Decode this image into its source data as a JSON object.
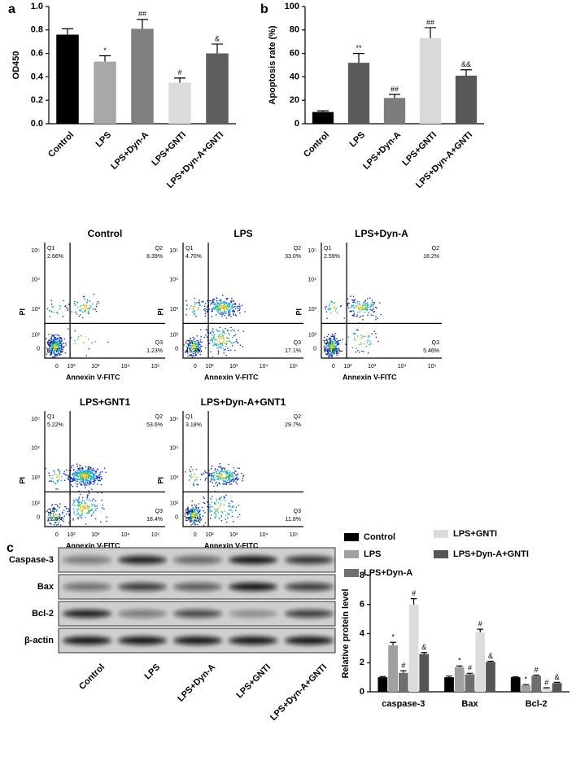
{
  "chart_data": [
    {
      "type": "bar",
      "panel_label": "a",
      "ylabel": "OD450",
      "categories": [
        "Control",
        "LPS",
        "LPS+Dyn-A",
        "LPS+GNTI",
        "LPS+Dyn-A+GNTI"
      ],
      "values": [
        0.76,
        0.53,
        0.81,
        0.35,
        0.6
      ],
      "errors": [
        0.05,
        0.05,
        0.08,
        0.04,
        0.08
      ],
      "annotations": [
        null,
        "*",
        "##",
        "#",
        "&"
      ],
      "colors": [
        "#000000",
        "#a8a8ab",
        "#808083",
        "#dcdcde",
        "#5e5e60"
      ],
      "ylim": [
        0,
        1
      ],
      "yticks": [
        {
          "value": 0,
          "label": "0.0"
        },
        0.2,
        0.4,
        0.6,
        0.8,
        {
          "value": 1,
          "label": "1.0"
        }
      ]
    },
    {
      "type": "bar",
      "panel_label": "b",
      "ylabel": "Apoptosis rate (%)",
      "categories": [
        "Control",
        "LPS",
        "LPS+Dyn-A",
        "LPS+GNTI",
        "LPS+Dyn-A+GNTI"
      ],
      "values": [
        10,
        52,
        22,
        73,
        41
      ],
      "errors": [
        1,
        8,
        3,
        9,
        5
      ],
      "annotations": [
        null,
        "**",
        "##",
        "##",
        "&&"
      ],
      "colors": [
        "#000000",
        "#5a5a5c",
        "#7c7c7e",
        "#d9d9db",
        "#58585a"
      ],
      "ylim": [
        0,
        100
      ],
      "yticks": [
        0,
        20,
        40,
        60,
        80,
        100
      ]
    },
    {
      "type": "bar",
      "ylabel": "Relative protein level",
      "categories": [
        "caspase-3",
        "Bax",
        "Bcl-2"
      ],
      "series": [
        {
          "name": "Control",
          "color": "#000000",
          "values": [
            1,
            1,
            1
          ],
          "errors": [
            0.05,
            0.08,
            0.03
          ],
          "annotations": [
            null,
            null,
            null
          ]
        },
        {
          "name": "LPS",
          "color": "#a0a0a3",
          "values": [
            3.2,
            1.7,
            0.45
          ],
          "errors": [
            0.2,
            0.08,
            0.05
          ],
          "annotations": [
            "*",
            "*",
            "*"
          ]
        },
        {
          "name": "LPS+Dyn-A",
          "color": "#6e6e70",
          "values": [
            1.3,
            1.2,
            1.1
          ],
          "errors": [
            0.15,
            0.07,
            0.05
          ],
          "annotations": [
            "#",
            "#",
            "#"
          ]
        },
        {
          "name": "LPS+GNTI",
          "color": "#dcdcde",
          "values": [
            6.0,
            4.1,
            0.25
          ],
          "errors": [
            0.4,
            0.2,
            0.03
          ],
          "annotations": [
            "#",
            "#",
            "#"
          ]
        },
        {
          "name": "LPS+Dyn-A+GNTI",
          "color": "#555557",
          "values": [
            2.6,
            2.05,
            0.6
          ],
          "errors": [
            0.1,
            0.05,
            0.05
          ],
          "annotations": [
            "&",
            "&",
            "&"
          ]
        }
      ],
      "ylim": [
        0,
        8
      ],
      "yticks": [
        0,
        2,
        4,
        6,
        8
      ]
    }
  ],
  "flow_cytometry": {
    "xlabel": "Annexin V-FITC",
    "ylabel": "PI",
    "xtick_labels": [
      "0",
      "10²",
      "10³",
      "10⁴",
      "10⁵"
    ],
    "ytick_labels": [
      "0",
      "10²",
      "10³",
      "10⁴",
      "10⁵"
    ],
    "plots": [
      {
        "title": "Control",
        "quadrants": [
          {
            "name": "Q1",
            "percent": "2.66%"
          },
          {
            "name": "Q2",
            "percent": "8.39%"
          },
          {
            "name": "Q3",
            "percent": "1.23%"
          },
          {
            "name": "Q4",
            "percent": "87.7%"
          }
        ]
      },
      {
        "title": "LPS",
        "quadrants": [
          {
            "name": "Q1",
            "percent": "4.70%"
          },
          {
            "name": "Q2",
            "percent": "33.0%"
          },
          {
            "name": "Q3",
            "percent": "17.1%"
          },
          {
            "name": "Q4",
            "percent": "45.3%"
          }
        ]
      },
      {
        "title": "LPS+Dyn-A",
        "quadrants": [
          {
            "name": "Q1",
            "percent": "2.59%"
          },
          {
            "name": "Q2",
            "percent": "18.2%"
          },
          {
            "name": "Q3",
            "percent": "5.46%"
          },
          {
            "name": "Q4",
            "percent": "73.8%"
          }
        ]
      },
      {
        "title": "LPS+GNT1",
        "quadrants": [
          {
            "name": "Q1",
            "percent": "5.22%"
          },
          {
            "name": "Q2",
            "percent": "53.6%"
          },
          {
            "name": "Q3",
            "percent": "18.4%"
          },
          {
            "name": "Q4",
            "percent": "22.9%"
          }
        ]
      },
      {
        "title": "LPS+Dyn-A+GNT1",
        "quadrants": [
          {
            "name": "Q1",
            "percent": "3.18%"
          },
          {
            "name": "Q2",
            "percent": "29.7%"
          },
          {
            "name": "Q3",
            "percent": "11.8%"
          },
          {
            "name": "Q4",
            "percent": "55.3%"
          }
        ]
      }
    ]
  },
  "western_blot": {
    "panel_label": "c",
    "proteins": [
      "Caspase-3",
      "Bax",
      "Bcl-2",
      "β-actin"
    ],
    "lanes": [
      "Control",
      "LPS",
      "LPS+Dyn-A",
      "LPS+GNTI",
      "LPS+Dyn-A+GNTI"
    ]
  }
}
